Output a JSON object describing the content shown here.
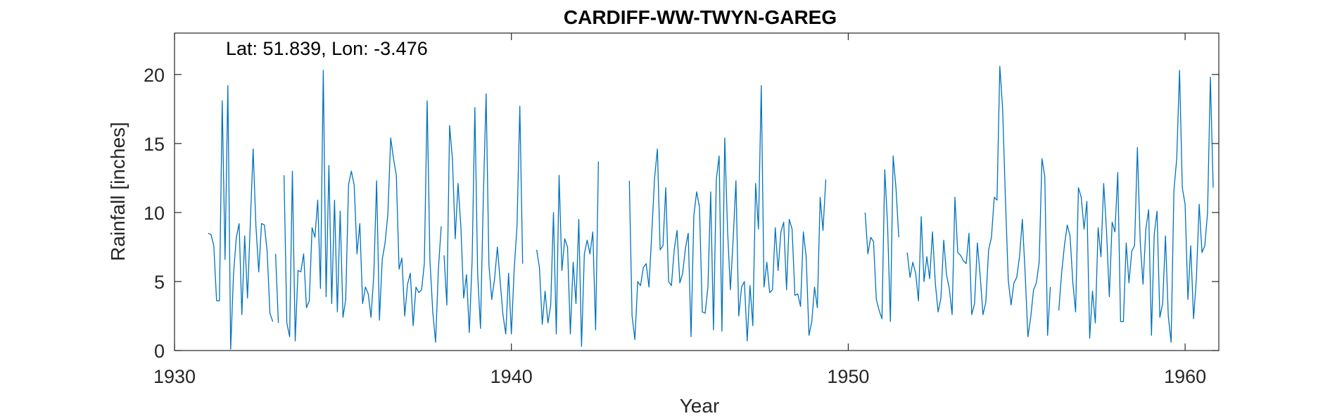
{
  "chart_data": {
    "type": "line",
    "title": "CARDIFF-WW-TWYN-GAREG",
    "annotation": "Lat: 51.839, Lon: -3.476",
    "xlabel": "Year",
    "ylabel": "Rainfall [inches]",
    "xlim": [
      1930,
      1961
    ],
    "ylim": [
      0,
      23
    ],
    "xticks": [
      1930,
      1940,
      1950,
      1960
    ],
    "yticks": [
      0,
      5,
      10,
      15,
      20
    ],
    "grid": false,
    "line_color": "#0072BD",
    "series": [
      {
        "segments": [
          {
            "start": 1931.0,
            "values": [
              8.5,
              8.4,
              7.6,
              3.6,
              3.6,
              18.1,
              6.6,
              19.2,
              0.1,
              5.5,
              8.2,
              9.2,
              2.6,
              8.3,
              3.8,
              9.2,
              14.6,
              9.0,
              5.7,
              9.2,
              9.1,
              7.2,
              2.7,
              2.1
            ]
          },
          {
            "start": 1933.0,
            "values": [
              7.0,
              2.0
            ]
          },
          {
            "start": 1933.25,
            "values": [
              12.7,
              2.0,
              1.0,
              13.0,
              0.7,
              5.8,
              5.7,
              7.0,
              3.1,
              3.6,
              8.9,
              8.2,
              10.9,
              4.5,
              20.3,
              3.9,
              13.4,
              3.4,
              10.9,
              2.8,
              10.1,
              2.4,
              3.7,
              12.0,
              13.0,
              12.0,
              7.0,
              9.2,
              3.4,
              4.6,
              4.1,
              2.4,
              5.5,
              12.3,
              2.2,
              6.6,
              7.8,
              9.9,
              15.4,
              13.9,
              12.7,
              5.9,
              6.7,
              2.5,
              4.8,
              5.6,
              1.8,
              4.6,
              4.2,
              4.4,
              6.3,
              18.1,
              6.5,
              2.8,
              0.6,
              5.9,
              9.0
            ]
          },
          {
            "start": 1938.0,
            "values": [
              6.9,
              3.3,
              16.3,
              13.9,
              8.1,
              12.1,
              9.0,
              3.8,
              5.5,
              1.3,
              6.5,
              17.6,
              5.5,
              1.6,
              11.0,
              18.6,
              6.2,
              3.7,
              5.2,
              7.5,
              5.0,
              2.6,
              1.2,
              5.6,
              1.2,
              5.9,
              9.0,
              17.7,
              6.3
            ]
          },
          {
            "start": 1940.75,
            "values": [
              7.3,
              6.0,
              1.9,
              4.3,
              2.0,
              3.3,
              10.0,
              1.2,
              12.7,
              5.8,
              8.1,
              7.5,
              1.2,
              6.4,
              3.4,
              9.5,
              0.3,
              7.0,
              8.0,
              7.0,
              8.6,
              1.5,
              13.7
            ]
          },
          {
            "start": 1943.5,
            "values": [
              12.3,
              2.5,
              0.8,
              5.0,
              4.7,
              6.0,
              6.3,
              4.6,
              8.5,
              12.5,
              14.6,
              7.3,
              7.6,
              11.8,
              5.0,
              4.7,
              7.3,
              8.7,
              4.9,
              5.6,
              7.4,
              8.5,
              1.0,
              9.8,
              11.5,
              10.4,
              2.8,
              2.7,
              4.6,
              11.5,
              1.5,
              12.4,
              14.1,
              1.4,
              15.4,
              8.7,
              4.4,
              8.1,
              12.3,
              2.5,
              4.6,
              5.0,
              0.7,
              4.7,
              1.8,
              12.1,
              8.8,
              19.2,
              4.6,
              6.4,
              4.2,
              4.4,
              8.9,
              5.8,
              8.6,
              9.3,
              4.4,
              9.5,
              8.8,
              4.0,
              4.1,
              3.2,
              8.6,
              6.8,
              1.1,
              2.1,
              4.6,
              3.1,
              11.1,
              8.7,
              12.4
            ]
          },
          {
            "start": 1950.5,
            "values": [
              10.0,
              7.0,
              8.2,
              7.9,
              3.7,
              2.9,
              2.3,
              13.1,
              9.1,
              2.1,
              14.1,
              11.8,
              8.2
            ]
          },
          {
            "start": 1951.75,
            "values": [
              7.1,
              5.3,
              6.4,
              5.6,
              3.6,
              9.7,
              5.0,
              6.8,
              5.2,
              8.6,
              4.9,
              2.8,
              3.8,
              8.0,
              5.5,
              4.5,
              2.6,
              11.1,
              7.1,
              6.9,
              6.5,
              6.3,
              8.5,
              2.6,
              3.4,
              7.8,
              5.4,
              2.6,
              3.5,
              7.3,
              8.2,
              11.1,
              10.9,
              20.6,
              17.5,
              10.9,
              5.1,
              3.3,
              4.9,
              5.3,
              6.8,
              9.5,
              5.7,
              1.0,
              2.4,
              4.4,
              4.9,
              6.4,
              13.9,
              12.6,
              1.1,
              4.6
            ]
          },
          {
            "start": 1956.25,
            "values": [
              2.9,
              5.6,
              7.6,
              9.1,
              8.3,
              4.9,
              2.8,
              11.8,
              11.1,
              8.8,
              10.8,
              0.9,
              4.3,
              2.0,
              8.9,
              6.8,
              12.1,
              8.7,
              3.9,
              9.3,
              8.6,
              12.9,
              2.1,
              2.1,
              7.8,
              4.9,
              7.2,
              7.6,
              14.7,
              7.9,
              4.8,
              8.8,
              10.2,
              1.1,
              8.4,
              10.1,
              2.4,
              3.4,
              8.3,
              2.5,
              0.6,
              11.6,
              13.9,
              20.3,
              11.8,
              10.6,
              3.7,
              7.6,
              2.3,
              5.2,
              10.6,
              7.1,
              7.6,
              10.0,
              19.8,
              11.8
            ]
          }
        ]
      }
    ]
  }
}
